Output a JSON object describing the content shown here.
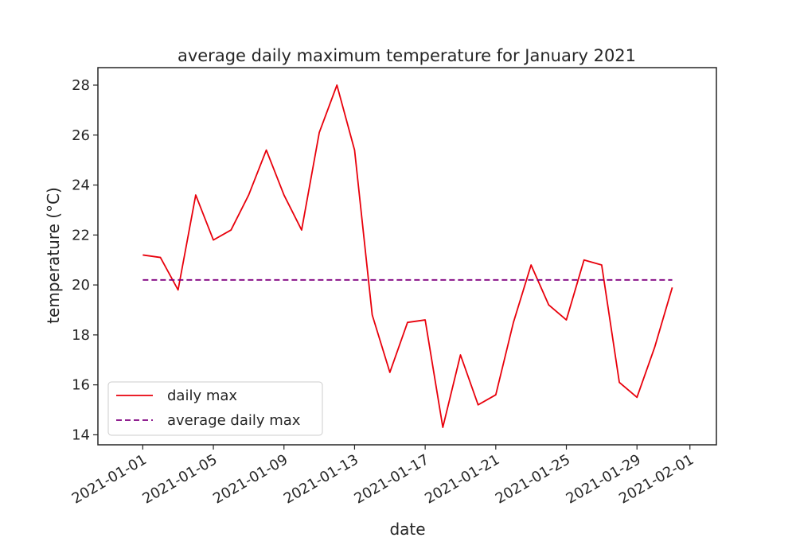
{
  "chart_data": {
    "type": "line",
    "title": "average daily maximum temperature for January 2021",
    "xlabel": "date",
    "ylabel": "temperature (°C)",
    "x": [
      "2021-01-01",
      "2021-01-02",
      "2021-01-03",
      "2021-01-04",
      "2021-01-05",
      "2021-01-06",
      "2021-01-07",
      "2021-01-08",
      "2021-01-09",
      "2021-01-10",
      "2021-01-11",
      "2021-01-12",
      "2021-01-13",
      "2021-01-14",
      "2021-01-15",
      "2021-01-16",
      "2021-01-17",
      "2021-01-18",
      "2021-01-19",
      "2021-01-20",
      "2021-01-21",
      "2021-01-22",
      "2021-01-23",
      "2021-01-24",
      "2021-01-25",
      "2021-01-26",
      "2021-01-27",
      "2021-01-28",
      "2021-01-29",
      "2021-01-30",
      "2021-01-31"
    ],
    "series": [
      {
        "name": "daily max",
        "color": "#e8000b",
        "style": "solid",
        "values": [
          21.2,
          21.1,
          19.8,
          23.6,
          21.8,
          22.2,
          23.6,
          25.4,
          23.6,
          22.2,
          26.1,
          28.0,
          25.4,
          18.8,
          16.5,
          18.5,
          18.6,
          14.3,
          17.2,
          15.2,
          15.6,
          18.5,
          20.8,
          19.2,
          18.6,
          21.0,
          20.8,
          16.1,
          15.5,
          17.5,
          19.9
        ]
      },
      {
        "name": "average daily max",
        "color": "#800080",
        "style": "dashed",
        "values": [
          20.2,
          20.2,
          20.2,
          20.2,
          20.2,
          20.2,
          20.2,
          20.2,
          20.2,
          20.2,
          20.2,
          20.2,
          20.2,
          20.2,
          20.2,
          20.2,
          20.2,
          20.2,
          20.2,
          20.2,
          20.2,
          20.2,
          20.2,
          20.2,
          20.2,
          20.2,
          20.2,
          20.2,
          20.2,
          20.2,
          20.2
        ]
      }
    ],
    "xticks": [
      "2021-01-01",
      "2021-01-05",
      "2021-01-09",
      "2021-01-13",
      "2021-01-17",
      "2021-01-21",
      "2021-01-25",
      "2021-01-29",
      "2021-02-01"
    ],
    "yticks": [
      14,
      16,
      18,
      20,
      22,
      24,
      26,
      28
    ],
    "xlim": [
      "2020-12-29T11:00",
      "2021-02-02T12:00"
    ],
    "ylim": [
      13.6,
      28.7
    ],
    "grid": false,
    "legend_position": "lower-left"
  }
}
